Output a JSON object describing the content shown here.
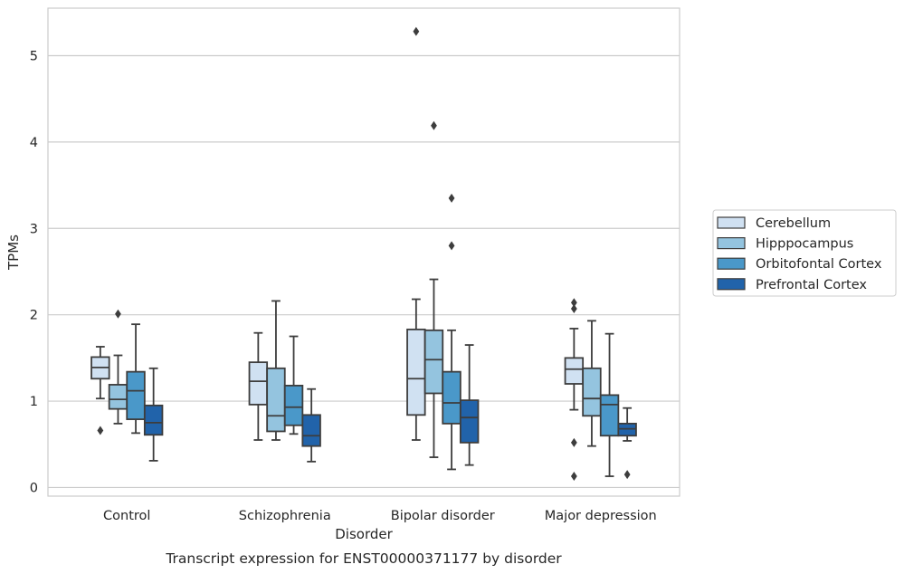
{
  "chart_data": {
    "type": "box",
    "title": "Transcript expression for ENST00000371177 by disorder",
    "xlabel": "Disorder",
    "ylabel": "TPMs",
    "ylim": [
      -0.1,
      5.55
    ],
    "yticks": [
      0,
      1,
      2,
      3,
      4,
      5
    ],
    "grid": true,
    "legend_position": "right",
    "categories": [
      "Control",
      "Schizophrenia",
      "Bipolar disorder",
      "Major depression"
    ],
    "series": [
      {
        "name": "Cerebellum",
        "color": "#d0e1f2",
        "boxes": [
          {
            "whislo": 1.03,
            "q1": 1.26,
            "med": 1.39,
            "q3": 1.51,
            "whishi": 1.63,
            "fliers": [
              0.66
            ]
          },
          {
            "whislo": 0.55,
            "q1": 0.96,
            "med": 1.23,
            "q3": 1.45,
            "whishi": 1.79,
            "fliers": []
          },
          {
            "whislo": 0.55,
            "q1": 0.84,
            "med": 1.26,
            "q3": 1.83,
            "whishi": 2.18,
            "fliers": [
              5.28
            ]
          },
          {
            "whislo": 0.9,
            "q1": 1.2,
            "med": 1.37,
            "q3": 1.5,
            "whishi": 1.84,
            "fliers": [
              2.14,
              2.07,
              0.52,
              0.13
            ]
          }
        ]
      },
      {
        "name": "Hipppocampus",
        "color": "#94c4df",
        "boxes": [
          {
            "whislo": 0.74,
            "q1": 0.91,
            "med": 1.02,
            "q3": 1.19,
            "whishi": 1.53,
            "fliers": [
              2.01
            ]
          },
          {
            "whislo": 0.55,
            "q1": 0.65,
            "med": 0.83,
            "q3": 1.38,
            "whishi": 2.16,
            "fliers": []
          },
          {
            "whislo": 0.35,
            "q1": 1.09,
            "med": 1.48,
            "q3": 1.82,
            "whishi": 2.41,
            "fliers": [
              4.19
            ]
          },
          {
            "whislo": 0.48,
            "q1": 0.83,
            "med": 1.03,
            "q3": 1.38,
            "whishi": 1.93,
            "fliers": []
          }
        ]
      },
      {
        "name": "Orbitofontal Cortex",
        "color": "#4a98c9",
        "boxes": [
          {
            "whislo": 0.63,
            "q1": 0.79,
            "med": 1.12,
            "q3": 1.34,
            "whishi": 1.89,
            "fliers": []
          },
          {
            "whislo": 0.62,
            "q1": 0.72,
            "med": 0.93,
            "q3": 1.18,
            "whishi": 1.75,
            "fliers": []
          },
          {
            "whislo": 0.21,
            "q1": 0.74,
            "med": 0.98,
            "q3": 1.34,
            "whishi": 1.82,
            "fliers": [
              3.35,
              2.8
            ]
          },
          {
            "whislo": 0.13,
            "q1": 0.6,
            "med": 0.96,
            "q3": 1.07,
            "whishi": 1.78,
            "fliers": []
          }
        ]
      },
      {
        "name": "Prefrontal Cortex",
        "color": "#2163aa",
        "boxes": [
          {
            "whislo": 0.31,
            "q1": 0.61,
            "med": 0.75,
            "q3": 0.95,
            "whishi": 1.38,
            "fliers": []
          },
          {
            "whislo": 0.3,
            "q1": 0.48,
            "med": 0.6,
            "q3": 0.84,
            "whishi": 1.14,
            "fliers": []
          },
          {
            "whislo": 0.26,
            "q1": 0.52,
            "med": 0.81,
            "q3": 1.01,
            "whishi": 1.65,
            "fliers": []
          },
          {
            "whislo": 0.54,
            "q1": 0.6,
            "med": 0.68,
            "q3": 0.74,
            "whishi": 0.92,
            "fliers": [
              0.15
            ]
          }
        ]
      }
    ]
  }
}
